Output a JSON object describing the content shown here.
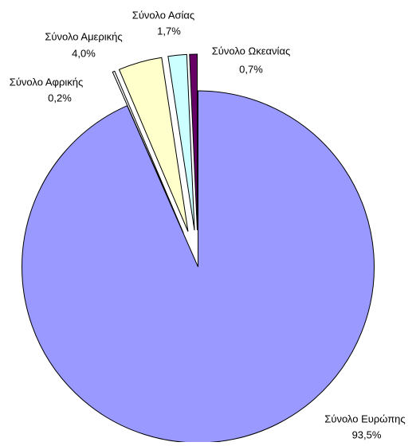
{
  "chart_data": {
    "type": "pie",
    "categories": [
      "Σύνολο Ευρώπης",
      "Σύνολο Αφρικής",
      "Σύνολο Αμερικής",
      "Σύνολο Ασίας",
      "Σύνολο Ωκεανίας"
    ],
    "values": [
      93.5,
      0.2,
      4.0,
      1.7,
      0.7
    ],
    "value_labels": [
      "93,5%",
      "0,2%",
      "4,0%",
      "1,7%",
      "0,7%"
    ],
    "colors": [
      "#9999ff",
      "#ffffff",
      "#ffffcc",
      "#ccffff",
      "#660066"
    ]
  }
}
